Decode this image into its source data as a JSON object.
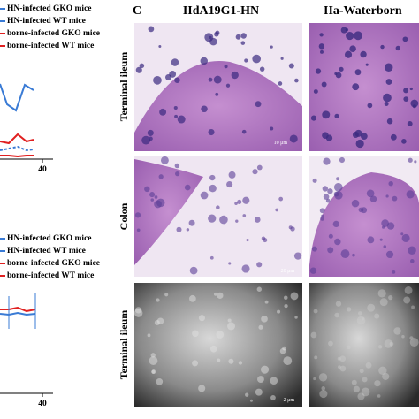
{
  "left": {
    "legend_top": [
      "HN-infected GKO mice",
      "HN-infected WT mice",
      "borne-infected GKO mice",
      "borne-infected WT mice"
    ],
    "x_tick_top": "40",
    "legend_bottom": [
      "HN-infected GKO mice",
      "HN-infected WT mice",
      "borne-infected GKO mice",
      "borne-infected WT mice"
    ],
    "x_tick_bottom": "40"
  },
  "right": {
    "panel_label": "C",
    "columns": [
      "IIdA19G1-HN",
      "IIa-Waterborn"
    ],
    "rows": [
      "Terminal ileum",
      "Colon",
      "Terminal ileum"
    ],
    "scale_bars": [
      "10 μm",
      "20 μm",
      "2 μm"
    ]
  }
}
